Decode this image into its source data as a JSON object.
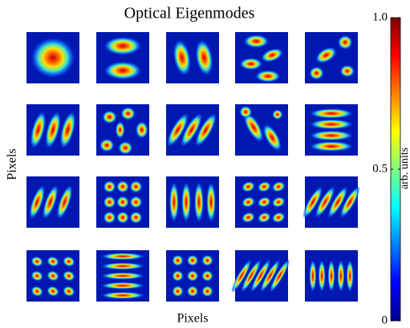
{
  "chart_data": {
    "type": "image-grid",
    "title": "Optical Eigenmodes",
    "xlabel": "Pixels",
    "ylabel": "Pixels",
    "colorbar": {
      "label": "arb. units",
      "lim": [
        0,
        1
      ],
      "ticks": [
        0,
        0.5,
        {
          "value": 1,
          "label": "1.0"
        }
      ],
      "colormap": "jet"
    }
  }
}
